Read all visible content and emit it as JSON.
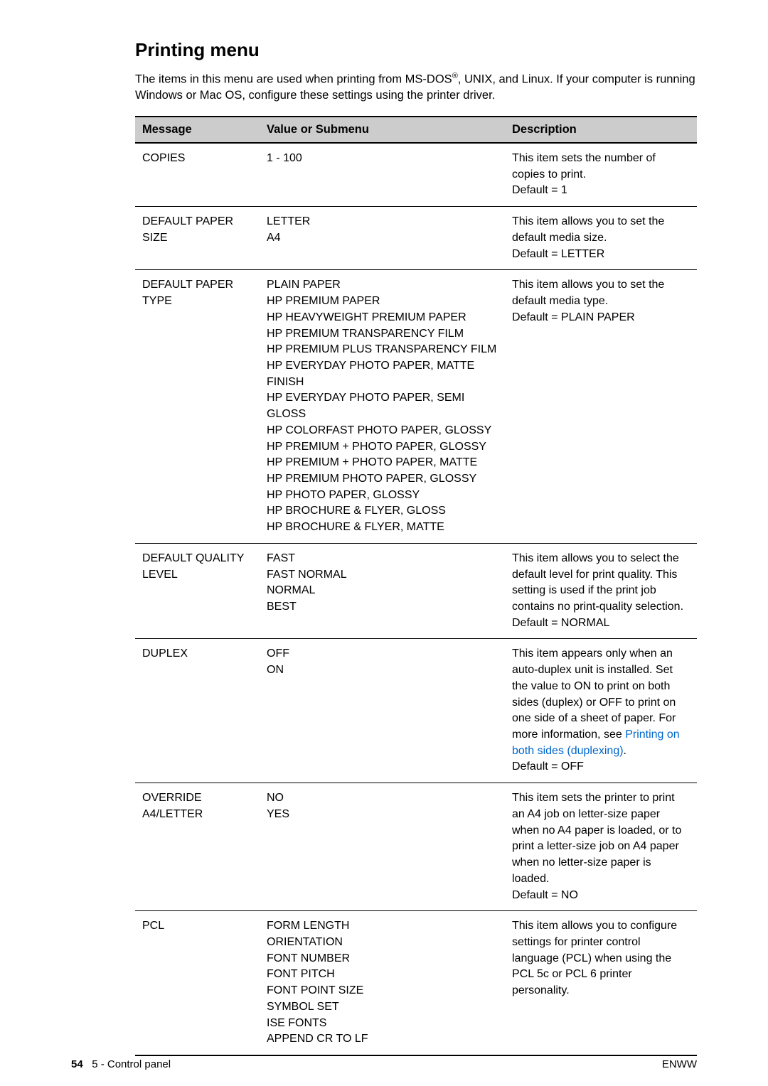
{
  "title": "Printing menu",
  "intro_part1": "The items in this menu are used when printing from MS-DOS",
  "intro_sup": "®",
  "intro_part2": ", UNIX, and Linux. If your computer is running Windows or Mac OS, configure these settings using the printer driver.",
  "headers": {
    "message": "Message",
    "value": "Value or Submenu",
    "description": "Description"
  },
  "rows": [
    {
      "message": "COPIES",
      "values": [
        "1 - 100"
      ],
      "description": "This item sets the number of copies to print.\nDefault = 1"
    },
    {
      "message": "DEFAULT PAPER SIZE",
      "values": [
        "LETTER",
        "A4"
      ],
      "description": "This item allows you to set the default media size.\nDefault = LETTER"
    },
    {
      "message": "DEFAULT PAPER TYPE",
      "values": [
        "PLAIN PAPER",
        "HP PREMIUM PAPER",
        "HP HEAVYWEIGHT PREMIUM PAPER",
        "HP PREMIUM TRANSPARENCY FILM",
        "HP PREMIUM PLUS TRANSPARENCY FILM",
        "HP EVERYDAY PHOTO PAPER, MATTE FINISH",
        "HP EVERYDAY PHOTO PAPER, SEMI GLOSS",
        "HP COLORFAST PHOTO PAPER, GLOSSY",
        "HP PREMIUM + PHOTO PAPER, GLOSSY",
        "HP PREMIUM + PHOTO PAPER, MATTE",
        "HP PREMIUM PHOTO PAPER, GLOSSY",
        "HP PHOTO PAPER, GLOSSY",
        "HP BROCHURE & FLYER, GLOSS",
        "HP BROCHURE & FLYER, MATTE"
      ],
      "description": "This item allows you to set the default media type.\nDefault = PLAIN PAPER"
    },
    {
      "message": "DEFAULT QUALITY LEVEL",
      "values": [
        "FAST",
        "FAST NORMAL",
        "NORMAL",
        "BEST"
      ],
      "description": "This item allows you to select the default level for print quality. This setting is used if the print job contains no print-quality selection.\nDefault = NORMAL"
    },
    {
      "message": "DUPLEX",
      "values": [
        "OFF",
        "ON"
      ],
      "description_pre": "This item appears only when an auto-duplex unit is installed. Set the value to ON to print on both sides (duplex) or OFF to print on one side of a sheet of paper. For more information, see ",
      "description_link": "Printing on both sides (duplexing)",
      "description_post": ".\nDefault = OFF"
    },
    {
      "message": "OVERRIDE A4/LETTER",
      "values": [
        "NO",
        "YES"
      ],
      "description": "This item sets the printer to print an A4 job on letter-size paper when no A4 paper is loaded, or to print a letter-size job on A4 paper when no letter-size paper is loaded.\nDefault = NO"
    },
    {
      "message": "PCL",
      "values": [
        "FORM LENGTH",
        "ORIENTATION",
        "FONT NUMBER",
        "FONT PITCH",
        "FONT POINT SIZE",
        "SYMBOL SET",
        "ISE FONTS",
        "APPEND CR TO LF"
      ],
      "description": "This item allows you to configure settings for printer control language (PCL) when using the PCL 5c or PCL 6 printer personality."
    }
  ],
  "footer": {
    "page_num": "54",
    "chapter": "5 - Control panel",
    "right": "ENWW"
  }
}
